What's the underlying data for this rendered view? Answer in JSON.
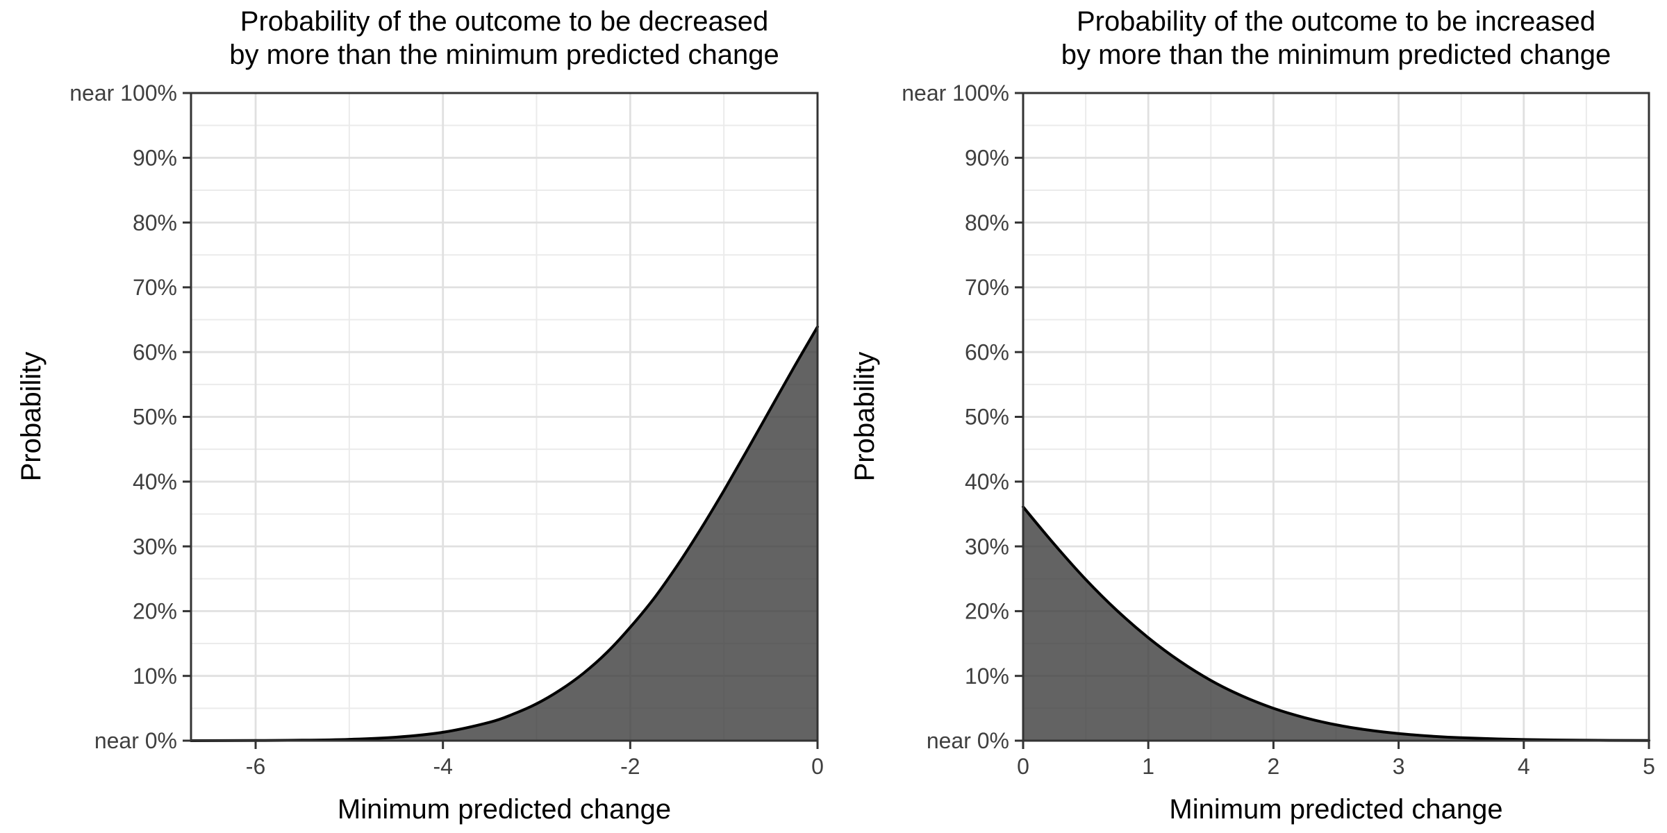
{
  "colors": {
    "background": "#ffffff",
    "area_fill": "rgba(60,60,60,0.8)",
    "curve": "#000000",
    "grid_major": "#e0e0e0",
    "grid_minor": "#ebebeb",
    "panel_border": "#333333",
    "tick": "#333333",
    "tick_label": "#3f3f3f",
    "title": "#000000"
  },
  "chart_data": [
    {
      "type": "area",
      "title_lines": [
        "Probability of the outcome to be decreased",
        "by more than the minimum predicted change"
      ],
      "xlabel": "Minimum predicted change",
      "ylabel": "Probability",
      "xlim": [
        -6.69,
        0
      ],
      "ylim": [
        0,
        100
      ],
      "grid": "on",
      "legend": "none",
      "x_ticks": {
        "values": [
          -6,
          -4,
          -2,
          0
        ],
        "labels": [
          "-6",
          "-4",
          "-2",
          "0"
        ]
      },
      "x_minor": [
        -5,
        -3,
        -1
      ],
      "y_ticks": {
        "values": [
          0,
          10,
          20,
          30,
          40,
          50,
          60,
          70,
          80,
          90,
          100
        ],
        "labels": [
          "near 0%",
          "10%",
          "20%",
          "30%",
          "40%",
          "50%",
          "60%",
          "70%",
          "80%",
          "90%",
          "near 100%"
        ]
      },
      "y_minor": [
        5,
        15,
        25,
        35,
        45,
        55,
        65,
        75,
        85,
        95
      ],
      "series": {
        "name": "probability-of-decrease",
        "points_percent": [
          [
            -6.69,
            0.005
          ],
          [
            -6,
            0.02
          ],
          [
            -5.5,
            0.07
          ],
          [
            -5,
            0.2
          ],
          [
            -4.5,
            0.54
          ],
          [
            -4,
            1.3
          ],
          [
            -3.5,
            2.85
          ],
          [
            -3.25,
            4.1
          ],
          [
            -3,
            5.7
          ],
          [
            -2.75,
            7.8
          ],
          [
            -2.5,
            10.4
          ],
          [
            -2.25,
            13.6
          ],
          [
            -2,
            17.5
          ],
          [
            -1.75,
            21.9
          ],
          [
            -1.5,
            27.0
          ],
          [
            -1.25,
            32.6
          ],
          [
            -1,
            38.6
          ],
          [
            -0.75,
            44.9
          ],
          [
            -0.5,
            51.3
          ],
          [
            -0.25,
            57.7
          ],
          [
            0,
            63.9
          ]
        ]
      }
    },
    {
      "type": "area",
      "title_lines": [
        "Probability of the outcome to be increased",
        "by more than the minimum predicted change"
      ],
      "xlabel": "Minimum predicted change",
      "ylabel": "Probability",
      "xlim": [
        0,
        5
      ],
      "ylim": [
        0,
        100
      ],
      "grid": "on",
      "legend": "none",
      "x_ticks": {
        "values": [
          0,
          1,
          2,
          3,
          4,
          5
        ],
        "labels": [
          "0",
          "1",
          "2",
          "3",
          "4",
          "5"
        ]
      },
      "x_minor": [
        0.5,
        1.5,
        2.5,
        3.5,
        4.5
      ],
      "y_ticks": {
        "values": [
          0,
          10,
          20,
          30,
          40,
          50,
          60,
          70,
          80,
          90,
          100
        ],
        "labels": [
          "near 0%",
          "10%",
          "20%",
          "30%",
          "40%",
          "50%",
          "60%",
          "70%",
          "80%",
          "90%",
          "near 100%"
        ]
      },
      "y_minor": [
        5,
        15,
        25,
        35,
        45,
        55,
        65,
        75,
        85,
        95
      ],
      "series": {
        "name": "probability-of-increase",
        "points_percent": [
          [
            0,
            36.1
          ],
          [
            0.25,
            30.3
          ],
          [
            0.5,
            24.9
          ],
          [
            0.75,
            20.1
          ],
          [
            1,
            15.9
          ],
          [
            1.25,
            12.3
          ],
          [
            1.5,
            9.3
          ],
          [
            1.75,
            6.9
          ],
          [
            2,
            5.0
          ],
          [
            2.25,
            3.55
          ],
          [
            2.5,
            2.45
          ],
          [
            2.75,
            1.66
          ],
          [
            3,
            1.1
          ],
          [
            3.25,
            0.71
          ],
          [
            3.5,
            0.45
          ],
          [
            4,
            0.17
          ],
          [
            4.5,
            0.06
          ],
          [
            5,
            0.02
          ]
        ]
      }
    }
  ]
}
